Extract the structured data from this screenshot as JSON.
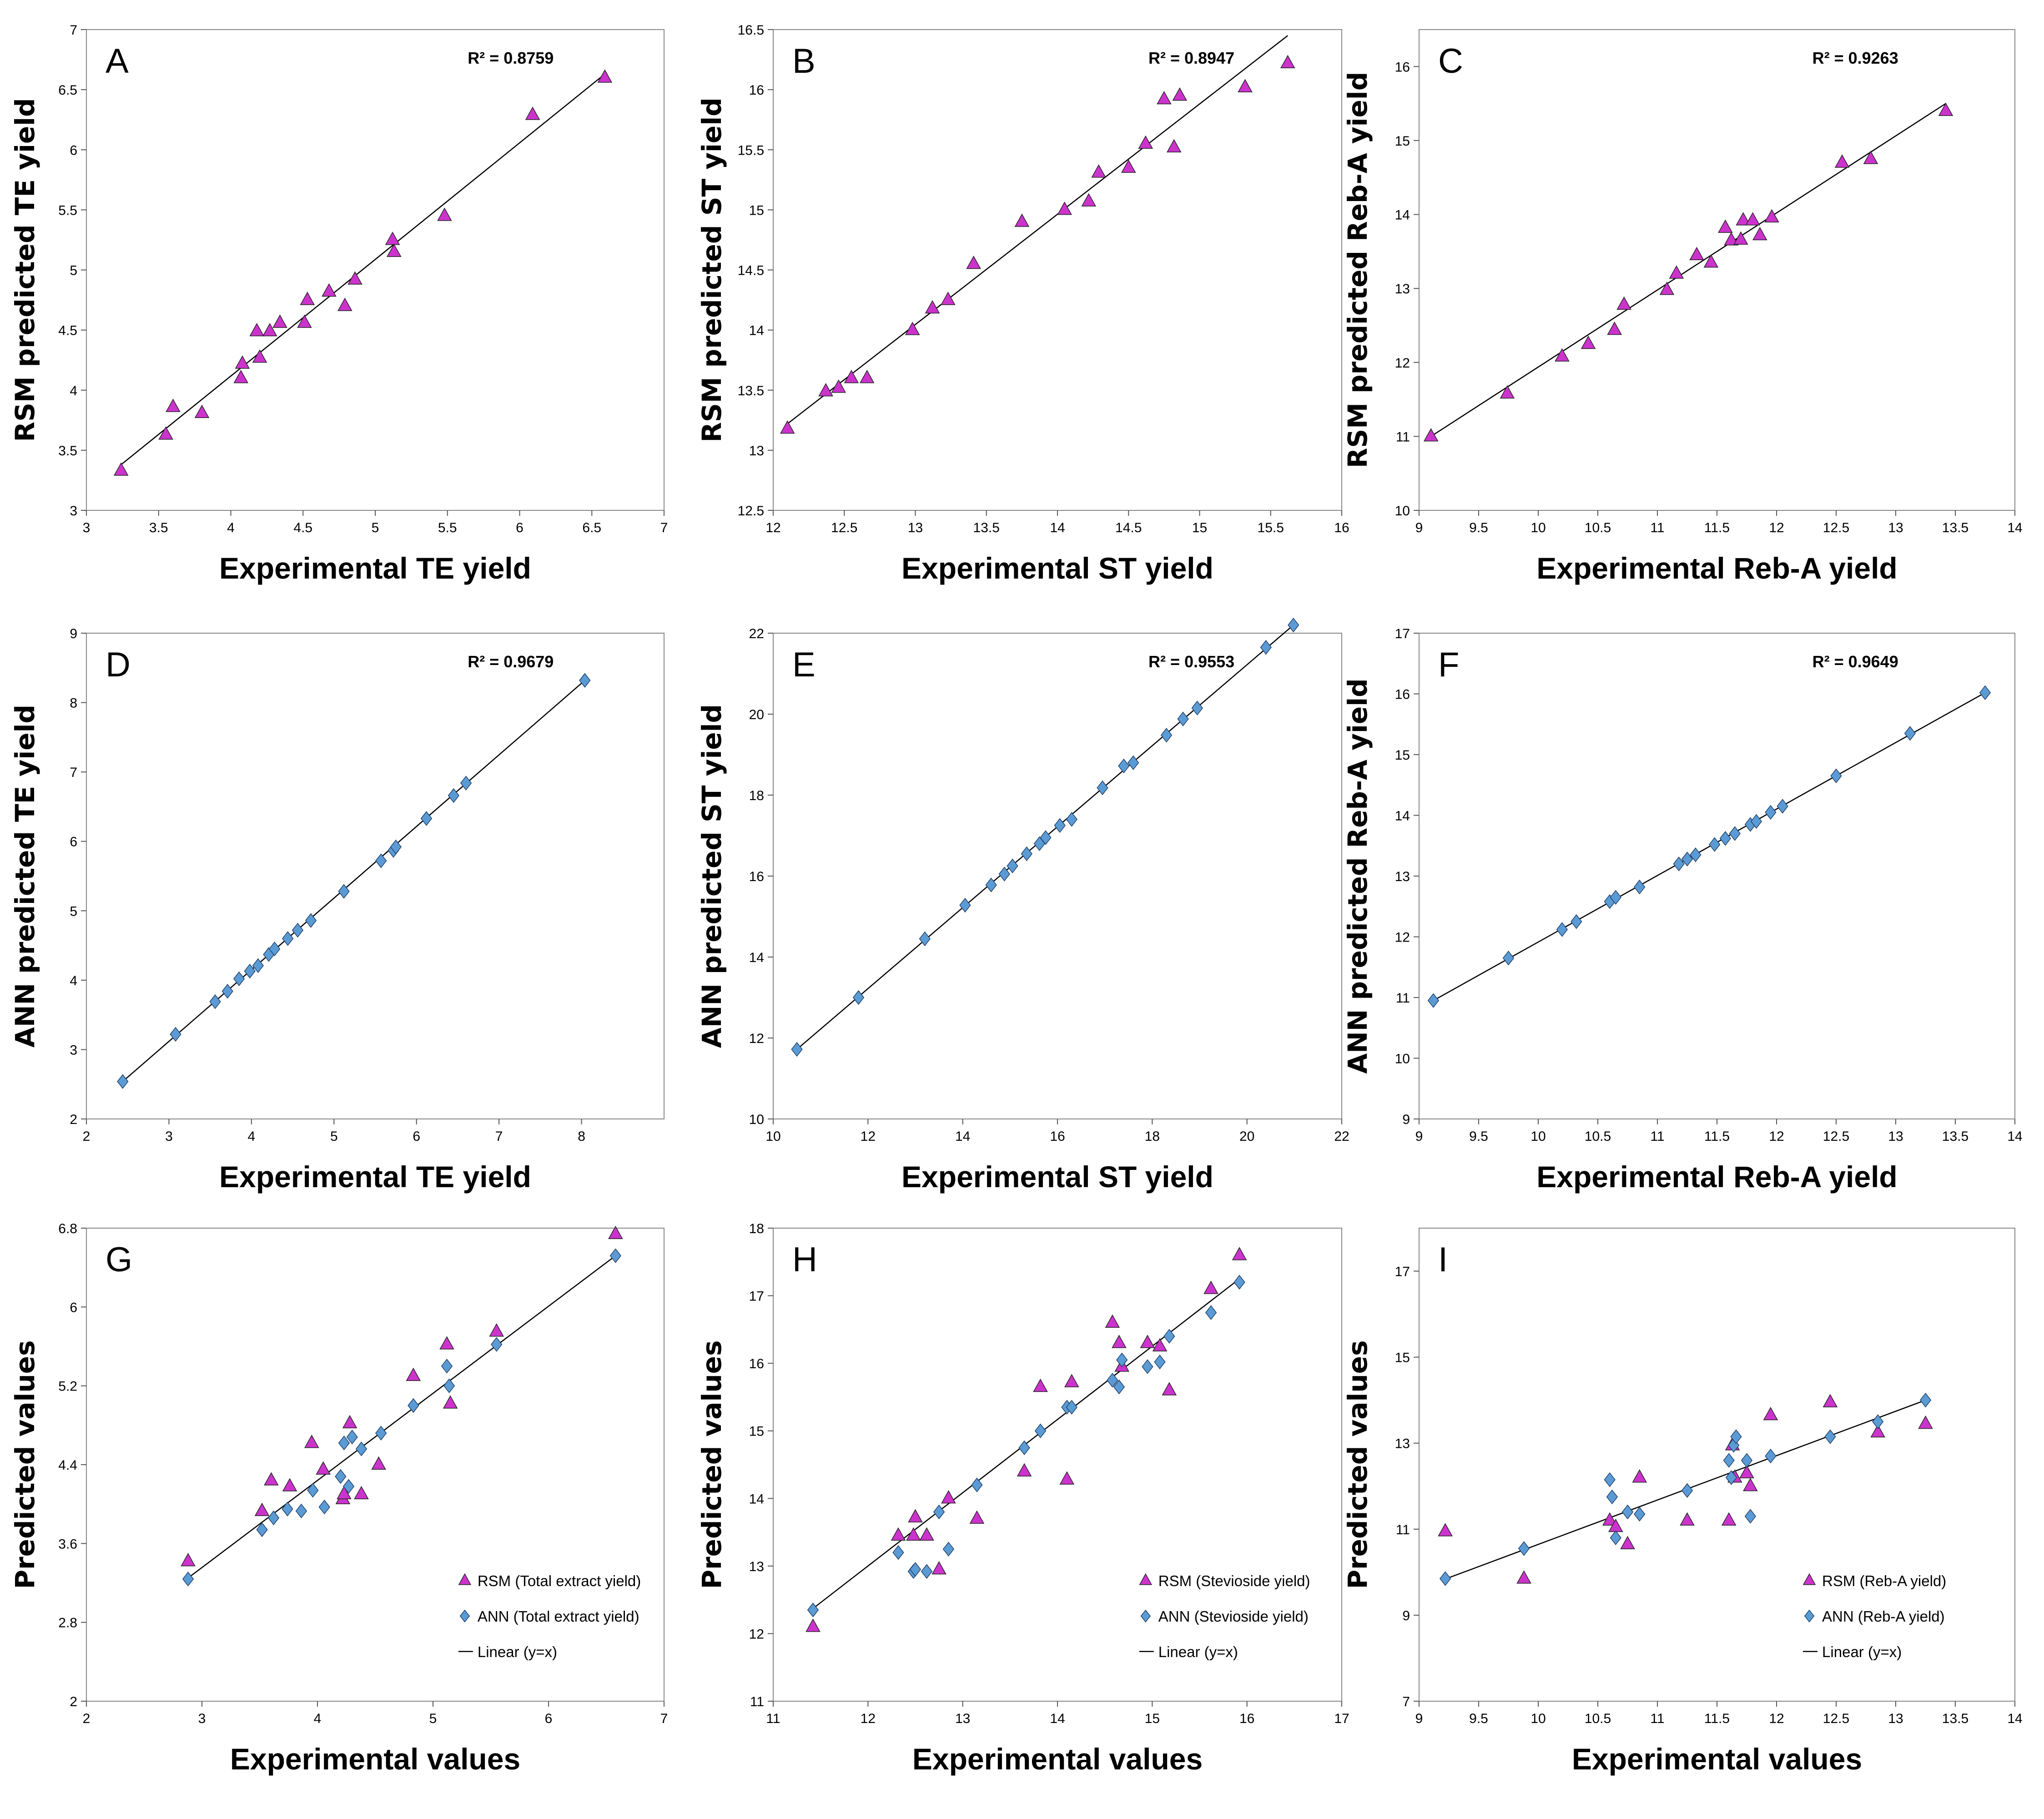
{
  "colors": {
    "rsm": "#cc33cc",
    "ann": "#5b9bd5",
    "line": "#000000"
  },
  "chart_data": [
    {
      "type": "scatter",
      "panel": "A",
      "xlabel": "Experimental TE yield",
      "ylabel": "RSM predicted TE yield",
      "xlim": [
        3,
        7
      ],
      "ylim": [
        3,
        7
      ],
      "xticks": [
        3,
        3.5,
        4,
        4.5,
        5,
        5.5,
        6,
        6.5,
        7
      ],
      "yticks": [
        3,
        3.5,
        4,
        4.5,
        5,
        5.5,
        6,
        6.5,
        7
      ],
      "xtick_labels": [
        "3",
        "3.5",
        "4",
        "4.5",
        "5",
        "5.5",
        "6",
        "6.5",
        "7"
      ],
      "ytick_labels": [
        "3",
        "3.5",
        "4",
        "4.5",
        "5",
        "5.5",
        "6",
        "6.5",
        "7"
      ],
      "r2": "R² = 0.8759",
      "trendline": [
        [
          3.24,
          3.38
        ],
        [
          6.59,
          6.63
        ]
      ],
      "series": [
        {
          "name": "RSM",
          "marker": "triangle",
          "x": [
            3.24,
            3.55,
            3.6,
            3.8,
            4.07,
            4.08,
            4.18,
            4.2,
            4.27,
            4.34,
            4.51,
            4.53,
            4.68,
            4.79,
            4.86,
            5.12,
            5.13,
            5.48,
            6.09,
            6.59
          ],
          "y": [
            3.33,
            3.63,
            3.86,
            3.81,
            4.1,
            4.22,
            4.49,
            4.27,
            4.49,
            4.56,
            4.56,
            4.75,
            4.82,
            4.7,
            4.92,
            5.25,
            5.15,
            5.45,
            6.29,
            6.6
          ]
        }
      ]
    },
    {
      "type": "scatter",
      "panel": "B",
      "xlabel": "Experimental ST yield",
      "ylabel": "RSM predicted ST yield",
      "xlim": [
        12,
        16
      ],
      "ylim": [
        12.5,
        16.5
      ],
      "xticks": [
        12,
        12.5,
        13,
        13.5,
        14,
        14.5,
        15,
        15.5,
        16
      ],
      "yticks": [
        12.5,
        13,
        13.5,
        14,
        14.5,
        15,
        15.5,
        16,
        16.5
      ],
      "xtick_labels": [
        "12",
        "12.5",
        "13",
        "13.5",
        "14",
        "14.5",
        "15",
        "15.5",
        "16"
      ],
      "ytick_labels": [
        "12.5",
        "13",
        "13.5",
        "14",
        "14.5",
        "15",
        "15.5",
        "16",
        "16.5"
      ],
      "r2": "R² = 0.8947",
      "trendline": [
        [
          12.1,
          13.22
        ],
        [
          15.62,
          16.45
        ]
      ],
      "series": [
        {
          "name": "RSM",
          "marker": "triangle",
          "x": [
            12.1,
            12.37,
            12.46,
            12.55,
            12.66,
            12.98,
            13.12,
            13.23,
            13.41,
            13.75,
            14.05,
            14.22,
            14.29,
            14.5,
            14.62,
            14.75,
            14.82,
            14.86,
            15.32,
            15.62
          ],
          "y": [
            13.18,
            13.49,
            13.52,
            13.6,
            13.6,
            14.0,
            14.18,
            14.25,
            14.55,
            14.9,
            15.0,
            15.07,
            15.31,
            15.35,
            15.55,
            15.92,
            15.52,
            15.95,
            16.02,
            16.22
          ]
        }
      ]
    },
    {
      "type": "scatter",
      "panel": "C",
      "xlabel": "Experimental Reb-A yield",
      "ylabel": "RSM predicted Reb-A yield",
      "xlim": [
        9,
        14
      ],
      "ylim": [
        10,
        16.5
      ],
      "xticks": [
        9,
        9.5,
        10,
        10.5,
        11,
        11.5,
        12,
        12.5,
        13,
        13.5,
        14
      ],
      "yticks": [
        10,
        11,
        12,
        13,
        14,
        15,
        16
      ],
      "xtick_labels": [
        "9",
        "9.5",
        "10",
        "10.5",
        "11",
        "11.5",
        "12",
        "12.5",
        "13",
        "13.5",
        "14"
      ],
      "ytick_labels": [
        "10",
        "11",
        "12",
        "13",
        "14",
        "15",
        "16"
      ],
      "r2": "R² = 0.9263",
      "trendline": [
        [
          9.1,
          11.0
        ],
        [
          13.42,
          15.5
        ]
      ],
      "series": [
        {
          "name": "RSM",
          "marker": "triangle",
          "x": [
            9.1,
            9.74,
            10.2,
            10.42,
            10.64,
            10.72,
            11.08,
            11.16,
            11.33,
            11.45,
            11.57,
            11.62,
            11.7,
            11.72,
            11.8,
            11.86,
            11.96,
            12.55,
            12.79,
            13.42
          ],
          "y": [
            11.0,
            11.58,
            12.08,
            12.25,
            12.44,
            12.78,
            12.98,
            13.2,
            13.45,
            13.35,
            13.82,
            13.65,
            13.66,
            13.92,
            13.92,
            13.72,
            13.96,
            14.7,
            14.75,
            15.4
          ]
        }
      ]
    },
    {
      "type": "scatter",
      "panel": "D",
      "xlabel": "Experimental TE yield",
      "ylabel": "ANN predicted TE yield",
      "xlim": [
        2,
        9
      ],
      "ylim": [
        2,
        9
      ],
      "xticks": [
        2,
        3,
        4,
        5,
        6,
        7,
        8
      ],
      "yticks": [
        2,
        3,
        4,
        5,
        6,
        7,
        8,
        9
      ],
      "xtick_labels": [
        "2",
        "3",
        "4",
        "5",
        "6",
        "7",
        "8"
      ],
      "ytick_labels": [
        "2",
        "3",
        "4",
        "5",
        "6",
        "7",
        "8",
        "9"
      ],
      "r2": "R² = 0.9679",
      "trendline": [
        [
          2.44,
          2.54
        ],
        [
          8.04,
          8.32
        ]
      ],
      "series": [
        {
          "name": "ANN",
          "marker": "diamond",
          "x": [
            2.44,
            3.08,
            3.56,
            3.71,
            3.85,
            3.98,
            4.08,
            4.21,
            4.28,
            4.44,
            4.56,
            4.72,
            5.12,
            5.57,
            5.72,
            5.75,
            6.12,
            6.45,
            6.6,
            8.04
          ],
          "y": [
            2.54,
            3.22,
            3.69,
            3.84,
            4.02,
            4.13,
            4.21,
            4.37,
            4.45,
            4.6,
            4.72,
            4.86,
            5.28,
            5.72,
            5.87,
            5.92,
            6.33,
            6.66,
            6.84,
            8.32
          ]
        }
      ]
    },
    {
      "type": "scatter",
      "panel": "E",
      "xlabel": "Experimental ST yield",
      "ylabel": "ANN predicted ST yield",
      "xlim": [
        10,
        22
      ],
      "ylim": [
        10,
        22
      ],
      "xticks": [
        10,
        12,
        14,
        16,
        18,
        20,
        22
      ],
      "yticks": [
        10,
        12,
        14,
        16,
        18,
        20,
        22
      ],
      "xtick_labels": [
        "10",
        "12",
        "14",
        "16",
        "18",
        "20",
        "22"
      ],
      "ytick_labels": [
        "10",
        "12",
        "14",
        "16",
        "18",
        "20",
        "22"
      ],
      "r2": "R² = 0.9553",
      "trendline": [
        [
          10.5,
          11.72
        ],
        [
          20.98,
          22.2
        ]
      ],
      "series": [
        {
          "name": "ANN",
          "marker": "diamond",
          "x": [
            10.5,
            11.8,
            13.2,
            14.05,
            14.6,
            14.88,
            15.05,
            15.35,
            15.62,
            15.75,
            16.05,
            16.3,
            16.95,
            17.4,
            17.6,
            18.3,
            18.65,
            18.95,
            20.4,
            20.98
          ],
          "y": [
            11.72,
            13.0,
            14.45,
            15.28,
            15.78,
            16.05,
            16.25,
            16.55,
            16.8,
            16.95,
            17.25,
            17.4,
            18.18,
            18.72,
            18.8,
            19.48,
            19.88,
            20.15,
            21.65,
            22.2
          ]
        }
      ]
    },
    {
      "type": "scatter",
      "panel": "F",
      "xlabel": "Experimental Reb-A yield",
      "ylabel": "ANN predicted Reb-A yield",
      "xlim": [
        9,
        14
      ],
      "ylim": [
        9,
        17
      ],
      "xticks": [
        9,
        9.5,
        10,
        10.5,
        11,
        11.5,
        12,
        12.5,
        13,
        13.5,
        14
      ],
      "yticks": [
        9,
        10,
        11,
        12,
        13,
        14,
        15,
        16,
        17
      ],
      "xtick_labels": [
        "9",
        "9.5",
        "10",
        "10.5",
        "11",
        "11.5",
        "12",
        "12.5",
        "13",
        "13.5",
        "14"
      ],
      "ytick_labels": [
        "9",
        "10",
        "11",
        "12",
        "13",
        "14",
        "15",
        "16",
        "17"
      ],
      "r2": "R² = 0.9649",
      "trendline": [
        [
          9.12,
          10.95
        ],
        [
          13.75,
          16.02
        ]
      ],
      "series": [
        {
          "name": "ANN",
          "marker": "diamond",
          "x": [
            9.12,
            9.75,
            10.2,
            10.32,
            10.6,
            10.65,
            10.85,
            11.18,
            11.25,
            11.32,
            11.48,
            11.57,
            11.65,
            11.78,
            11.83,
            11.95,
            12.05,
            12.5,
            13.12,
            13.75
          ],
          "y": [
            10.95,
            11.65,
            12.12,
            12.25,
            12.58,
            12.65,
            12.82,
            13.2,
            13.28,
            13.35,
            13.52,
            13.62,
            13.7,
            13.85,
            13.9,
            14.05,
            14.15,
            14.65,
            15.35,
            16.02
          ]
        }
      ]
    },
    {
      "type": "scatter",
      "panel": "G",
      "xlabel": "Experimental values",
      "ylabel": "Predicted values",
      "xlim": [
        2,
        7
      ],
      "ylim": [
        2,
        6.8
      ],
      "xticks": [
        2,
        3,
        4,
        5,
        6,
        7
      ],
      "yticks": [
        2,
        2.8,
        3.6,
        4.4,
        5.2,
        6,
        6.8
      ],
      "xtick_labels": [
        "2",
        "3",
        "4",
        "5",
        "6",
        "7"
      ],
      "ytick_labels": [
        "2",
        "2.8",
        "3.6",
        "4.4",
        "5.2",
        "6",
        "6.8"
      ],
      "trendline": [
        [
          2.88,
          3.25
        ],
        [
          6.58,
          6.52
        ]
      ],
      "legend": [
        "RSM (Total extract yield)",
        "ANN (Total extract yield)",
        "Linear (y=x)"
      ],
      "series": [
        {
          "name": "RSM (Total extract yield)",
          "marker": "triangle",
          "x": [
            2.88,
            3.52,
            3.6,
            3.76,
            3.95,
            4.05,
            4.22,
            4.23,
            4.28,
            4.38,
            4.53,
            4.83,
            5.12,
            5.15,
            5.55,
            6.58
          ],
          "y": [
            3.42,
            3.93,
            4.24,
            4.18,
            4.62,
            4.35,
            4.05,
            4.1,
            4.82,
            4.1,
            4.4,
            5.3,
            5.62,
            5.02,
            5.75,
            6.74
          ]
        },
        {
          "name": "ANN (Total extract yield)",
          "marker": "diamond",
          "x": [
            2.88,
            3.52,
            3.62,
            3.74,
            3.86,
            3.96,
            4.06,
            4.2,
            4.23,
            4.27,
            4.3,
            4.38,
            4.55,
            4.83,
            5.12,
            5.14,
            5.55,
            6.58
          ],
          "y": [
            3.24,
            3.74,
            3.86,
            3.95,
            3.93,
            4.14,
            3.97,
            4.28,
            4.62,
            4.18,
            4.68,
            4.56,
            4.72,
            5.0,
            5.4,
            5.2,
            5.62,
            6.52
          ]
        }
      ]
    },
    {
      "type": "scatter",
      "panel": "H",
      "xlabel": "Experimental values",
      "ylabel": "Predicted values",
      "xlim": [
        11,
        17
      ],
      "ylim": [
        11,
        18
      ],
      "xticks": [
        11,
        12,
        13,
        14,
        15,
        16,
        17
      ],
      "yticks": [
        11,
        12,
        13,
        14,
        15,
        16,
        17,
        18
      ],
      "xtick_labels": [
        "11",
        "12",
        "13",
        "14",
        "15",
        "16",
        "17"
      ],
      "ytick_labels": [
        "11",
        "12",
        "13",
        "14",
        "15",
        "16",
        "17",
        "18"
      ],
      "trendline": [
        [
          11.4,
          12.35
        ],
        [
          15.92,
          17.25
        ]
      ],
      "legend": [
        "RSM (Stevioside yield)",
        "ANN (Stevioside yield)",
        "Linear (y=x)"
      ],
      "series": [
        {
          "name": "RSM (Stevioside yield)",
          "marker": "triangle",
          "x": [
            11.42,
            12.32,
            12.48,
            12.5,
            12.62,
            12.75,
            12.85,
            13.15,
            13.65,
            13.82,
            14.1,
            14.15,
            14.58,
            14.65,
            14.68,
            14.95,
            15.08,
            15.18,
            15.62,
            15.92
          ],
          "y": [
            12.1,
            13.45,
            13.45,
            13.72,
            13.45,
            12.95,
            14.0,
            13.7,
            14.4,
            15.65,
            14.28,
            15.72,
            16.6,
            16.3,
            15.95,
            16.3,
            16.25,
            15.6,
            17.1,
            17.6
          ]
        },
        {
          "name": "ANN (Stevioside yield)",
          "marker": "diamond",
          "x": [
            11.42,
            12.32,
            12.48,
            12.5,
            12.62,
            12.75,
            12.85,
            13.15,
            13.65,
            13.82,
            14.1,
            14.15,
            14.58,
            14.65,
            14.68,
            14.95,
            15.08,
            15.18,
            15.62,
            15.92
          ],
          "y": [
            12.35,
            13.2,
            12.92,
            12.95,
            12.92,
            13.8,
            13.25,
            14.2,
            14.75,
            15.0,
            15.35,
            15.35,
            15.75,
            15.65,
            16.05,
            15.95,
            16.02,
            16.4,
            16.75,
            17.2
          ]
        }
      ]
    },
    {
      "type": "scatter",
      "panel": "I",
      "xlabel": "Experimental values",
      "ylabel": "Predicted values",
      "xlim": [
        9,
        14
      ],
      "ylim": [
        7,
        18
      ],
      "xticks": [
        9,
        9.5,
        10,
        10.5,
        11,
        11.5,
        12,
        12.5,
        13,
        13.5,
        14
      ],
      "yticks": [
        7,
        9,
        11,
        13,
        15,
        17
      ],
      "xtick_labels": [
        "9",
        "9.5",
        "10",
        "10.5",
        "11",
        "11.5",
        "12",
        "12.5",
        "13",
        "13.5",
        "14"
      ],
      "ytick_labels": [
        "7",
        "9",
        "11",
        "13",
        "15",
        "17"
      ],
      "trendline": [
        [
          9.2,
          9.82
        ],
        [
          13.25,
          14.0
        ]
      ],
      "legend": [
        "RSM (Reb-A yield)",
        "ANN (Reb-A yield)",
        "Linear (y=x)"
      ],
      "series": [
        {
          "name": "RSM (Reb-A yield)",
          "marker": "triangle",
          "x": [
            9.22,
            9.88,
            10.6,
            10.65,
            10.75,
            10.85,
            11.25,
            11.6,
            11.63,
            11.65,
            11.75,
            11.78,
            11.95,
            12.45,
            12.85,
            13.25
          ],
          "y": [
            10.95,
            9.85,
            11.2,
            11.05,
            10.65,
            12.2,
            11.2,
            11.2,
            12.95,
            12.2,
            12.3,
            12.0,
            13.65,
            13.95,
            13.25,
            13.45
          ]
        },
        {
          "name": "ANN (Reb-A yield)",
          "marker": "diamond",
          "x": [
            9.22,
            9.88,
            10.6,
            10.62,
            10.65,
            10.75,
            10.85,
            11.25,
            11.6,
            11.62,
            11.64,
            11.66,
            11.75,
            11.78,
            11.95,
            12.45,
            12.85,
            13.25
          ],
          "y": [
            9.85,
            10.55,
            12.15,
            11.75,
            10.8,
            11.4,
            11.35,
            11.9,
            12.6,
            12.2,
            12.95,
            13.15,
            12.6,
            11.3,
            12.7,
            13.15,
            13.5,
            14.0
          ]
        }
      ]
    }
  ]
}
